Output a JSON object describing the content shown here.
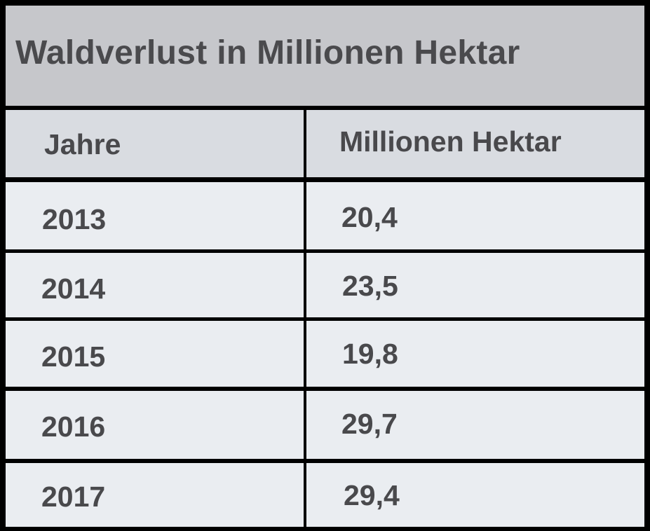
{
  "chart_data": {
    "type": "table",
    "title": "Waldverlust in Millionen Hektar",
    "columns": [
      "Jahre",
      "Millionen Hektar"
    ],
    "rows": [
      [
        "2013",
        "20,4"
      ],
      [
        "2014",
        "23,5"
      ],
      [
        "2015",
        "19,8"
      ],
      [
        "2016",
        "29,7"
      ],
      [
        "2017",
        "29,4"
      ]
    ],
    "x": [
      2013,
      2014,
      2015,
      2016,
      2017
    ],
    "values": [
      20.4,
      23.5,
      19.8,
      29.7,
      29.4
    ]
  },
  "colors": {
    "border": "#000000",
    "title_background": "#c6c7cb",
    "header_background": "#d9dce1",
    "row_background": "#eaedf1",
    "text": "#4a4a4d"
  }
}
